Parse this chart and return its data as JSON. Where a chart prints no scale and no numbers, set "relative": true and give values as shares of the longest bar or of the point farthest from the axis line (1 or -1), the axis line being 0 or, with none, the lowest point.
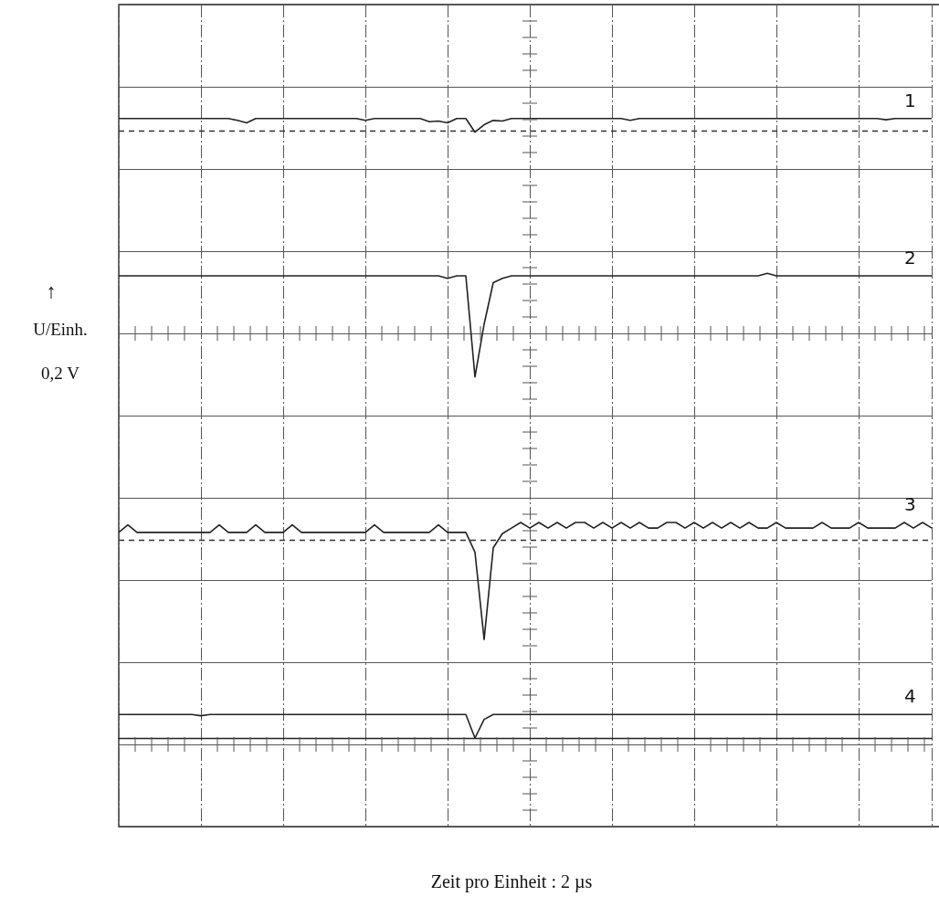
{
  "chart_data": {
    "type": "line",
    "relative": true,
    "grid": true,
    "ylabel": "U/Einh.",
    "annotations": [
      "↑",
      "0,2 V",
      "Zeit pro Einheit : 2 µs"
    ],
    "categories": [
      null,
      null,
      null,
      null,
      null,
      null,
      null,
      null,
      null,
      null,
      null,
      null,
      null,
      null,
      null,
      null,
      null,
      null,
      null,
      null,
      null,
      null,
      null,
      null,
      null,
      null,
      null,
      null,
      null,
      null,
      null,
      null,
      null,
      null,
      null,
      null,
      null,
      null,
      null,
      null,
      null,
      null,
      null,
      null,
      null,
      null,
      null,
      null,
      null,
      null,
      null,
      null,
      null,
      null,
      null,
      null,
      null,
      null,
      null,
      null,
      null,
      null,
      null,
      null,
      null,
      null,
      null,
      null,
      null,
      null,
      null,
      null,
      null,
      null,
      null,
      null,
      null,
      null,
      null,
      null,
      null,
      null,
      null,
      null,
      null,
      null,
      null,
      null,
      null,
      null
    ],
    "ref_lines": [
      {
        "axis": "y",
        "value": 0.98,
        "line_style": "dashed",
        "color": "#333333"
      },
      {
        "axis": "y",
        "value": 0.322,
        "line_style": "dashed",
        "color": "#333333"
      }
    ],
    "series": [
      {
        "name": "1",
        "color": "#222222",
        "values": [
          1,
          1,
          1,
          1,
          1,
          1,
          1,
          1,
          1,
          1,
          1,
          1,
          1,
          0.997,
          0.993,
          1,
          1,
          1,
          1,
          1,
          1,
          1,
          1,
          1,
          1,
          1,
          1,
          0.997,
          1,
          1,
          1,
          1,
          1,
          1,
          0.995,
          0.996,
          0.993,
          1,
          1,
          0.978,
          0.99,
          0.997,
          0.996,
          1,
          1,
          1,
          1,
          1,
          1,
          1,
          1,
          1,
          1,
          1,
          1,
          1,
          0.997,
          1,
          1,
          1,
          1,
          1,
          1,
          1,
          1,
          1,
          1,
          1,
          1,
          1,
          1,
          1,
          1,
          1,
          1,
          1,
          1,
          1,
          1,
          1,
          1,
          1,
          1,
          1,
          0.998,
          1,
          1,
          1,
          1,
          1
        ]
      },
      {
        "name": "2",
        "color": "#222222",
        "values": [
          0.746,
          0.746,
          0.746,
          0.746,
          0.746,
          0.746,
          0.746,
          0.746,
          0.746,
          0.746,
          0.746,
          0.746,
          0.746,
          0.746,
          0.746,
          0.746,
          0.746,
          0.746,
          0.746,
          0.746,
          0.746,
          0.746,
          0.746,
          0.746,
          0.746,
          0.746,
          0.746,
          0.746,
          0.746,
          0.746,
          0.746,
          0.746,
          0.746,
          0.746,
          0.746,
          0.746,
          0.742,
          0.746,
          0.746,
          0.583,
          0.668,
          0.735,
          0.742,
          0.746,
          0.746,
          0.746,
          0.746,
          0.746,
          0.746,
          0.746,
          0.746,
          0.746,
          0.746,
          0.746,
          0.746,
          0.746,
          0.746,
          0.746,
          0.746,
          0.746,
          0.746,
          0.746,
          0.746,
          0.746,
          0.746,
          0.746,
          0.746,
          0.746,
          0.746,
          0.746,
          0.746,
          0.75,
          0.746,
          0.746,
          0.746,
          0.746,
          0.746,
          0.746,
          0.746,
          0.746,
          0.746,
          0.746,
          0.746,
          0.746,
          0.746,
          0.746,
          0.746,
          0.746,
          0.746,
          0.746
        ]
      },
      {
        "name": "3",
        "color": "#222222",
        "values": [
          0.332,
          0.344,
          0.332,
          0.332,
          0.332,
          0.332,
          0.332,
          0.332,
          0.332,
          0.332,
          0.332,
          0.344,
          0.332,
          0.332,
          0.332,
          0.344,
          0.332,
          0.332,
          0.332,
          0.344,
          0.332,
          0.332,
          0.332,
          0.332,
          0.332,
          0.332,
          0.332,
          0.332,
          0.344,
          0.332,
          0.332,
          0.332,
          0.332,
          0.332,
          0.332,
          0.344,
          0.332,
          0.332,
          0.332,
          0.3,
          0.159,
          0.307,
          0.33,
          0.339,
          0.348,
          0.339,
          0.348,
          0.339,
          0.348,
          0.339,
          0.348,
          0.348,
          0.339,
          0.348,
          0.339,
          0.348,
          0.339,
          0.348,
          0.339,
          0.339,
          0.348,
          0.348,
          0.339,
          0.348,
          0.339,
          0.348,
          0.339,
          0.348,
          0.339,
          0.348,
          0.339,
          0.339,
          0.348,
          0.339,
          0.339,
          0.339,
          0.339,
          0.348,
          0.339,
          0.339,
          0.339,
          0.348,
          0.339,
          0.339,
          0.339,
          0.339,
          0.348,
          0.339,
          0.348,
          0.339
        ]
      },
      {
        "name": "4",
        "color": "#222222",
        "values": [
          0.038,
          0.038,
          0.038,
          0.038,
          0.038,
          0.038,
          0.038,
          0.038,
          0.038,
          0.036,
          0.038,
          0.038,
          0.038,
          0.038,
          0.038,
          0.038,
          0.038,
          0.038,
          0.038,
          0.038,
          0.038,
          0.038,
          0.038,
          0.038,
          0.038,
          0.038,
          0.038,
          0.038,
          0.038,
          0.038,
          0.038,
          0.038,
          0.038,
          0.038,
          0.038,
          0.038,
          0.038,
          0.038,
          0.038,
          0,
          0.03,
          0.038,
          0.038,
          0.038,
          0.038,
          0.038,
          0.038,
          0.038,
          0.038,
          0.038,
          0.038,
          0.038,
          0.038,
          0.038,
          0.038,
          0.038,
          0.038,
          0.038,
          0.038,
          0.038,
          0.038,
          0.038,
          0.038,
          0.038,
          0.038,
          0.038,
          0.038,
          0.038,
          0.038,
          0.038,
          0.038,
          0.038,
          0.038,
          0.038,
          0.038,
          0.038,
          0.038,
          0.038,
          0.038,
          0.038,
          0.038,
          0.038,
          0.038,
          0.038,
          0.038,
          0.038,
          0.038,
          0.038,
          0.038,
          0.038
        ]
      }
    ]
  }
}
